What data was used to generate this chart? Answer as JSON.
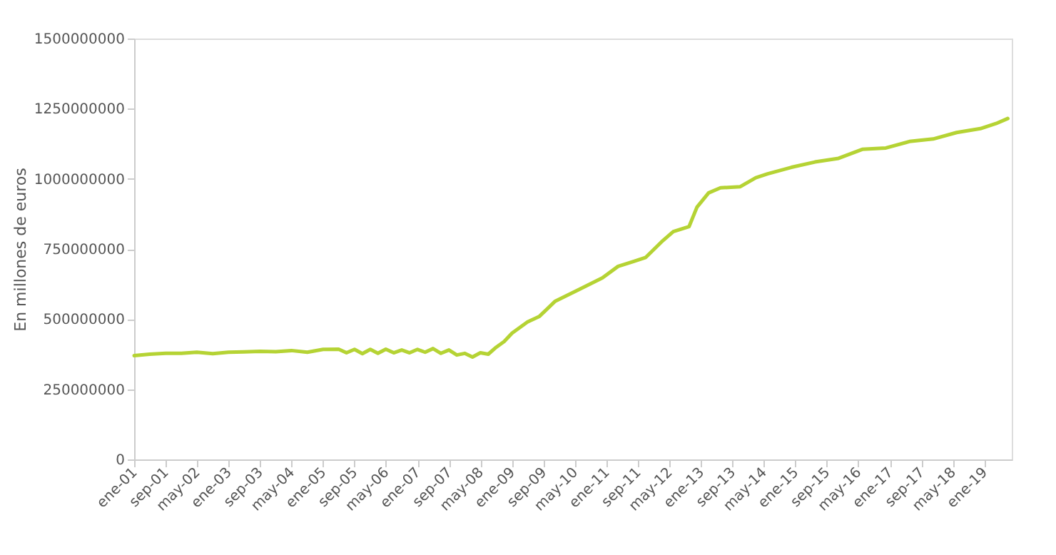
{
  "chart_data": {
    "type": "line",
    "ylabel": "En millones de euros",
    "x": [
      "2001-01",
      "2001-05",
      "2001-09",
      "2002-01",
      "2002-05",
      "2002-09",
      "2003-01",
      "2003-05",
      "2003-09",
      "2004-01",
      "2004-05",
      "2004-09",
      "2005-01",
      "2005-05",
      "2005-07",
      "2005-09",
      "2005-11",
      "2006-01",
      "2006-03",
      "2006-05",
      "2006-07",
      "2006-09",
      "2006-11",
      "2007-01",
      "2007-03",
      "2007-05",
      "2007-07",
      "2007-09",
      "2007-11",
      "2008-01",
      "2008-03",
      "2008-05",
      "2008-07",
      "2008-09",
      "2008-11",
      "2009-01",
      "2009-05",
      "2009-08",
      "2009-12",
      "2010-06",
      "2010-12",
      "2011-04",
      "2011-08",
      "2011-11",
      "2012-03",
      "2012-06",
      "2012-10",
      "2012-12",
      "2013-03",
      "2013-06",
      "2013-11",
      "2014-03",
      "2014-06",
      "2014-12",
      "2015-06",
      "2015-12",
      "2016-06",
      "2016-12",
      "2017-06",
      "2017-12",
      "2018-06",
      "2018-12",
      "2019-04",
      "2019-07"
    ],
    "series": [
      {
        "color": "#b5d334",
        "values": [
          370000000,
          375000000,
          378000000,
          378000000,
          382000000,
          377000000,
          382000000,
          383000000,
          385000000,
          384000000,
          388000000,
          382000000,
          392000000,
          393000000,
          380000000,
          392000000,
          377000000,
          392000000,
          378000000,
          393000000,
          380000000,
          390000000,
          380000000,
          392000000,
          382000000,
          395000000,
          378000000,
          390000000,
          372000000,
          378000000,
          365000000,
          380000000,
          375000000,
          400000000,
          420000000,
          450000000,
          490000000,
          510000000,
          564000000,
          605000000,
          647000000,
          688000000,
          706000000,
          720000000,
          775000000,
          812000000,
          830000000,
          899000000,
          950000000,
          968000000,
          972000000,
          1004000000,
          1018000000,
          1041000000,
          1060000000,
          1073000000,
          1105000000,
          1110000000,
          1133000000,
          1142000000,
          1165000000,
          1179000000,
          1197000000,
          1215000000
        ]
      }
    ],
    "xlim": [
      "2001-01",
      "2019-08"
    ],
    "xticks": [
      {
        "value": "2001-01",
        "label": "ene-01"
      },
      {
        "value": "2001-09",
        "label": "sep-01"
      },
      {
        "value": "2002-05",
        "label": "may-02"
      },
      {
        "value": "2003-01",
        "label": "ene-03"
      },
      {
        "value": "2003-09",
        "label": "sep-03"
      },
      {
        "value": "2004-05",
        "label": "may-04"
      },
      {
        "value": "2005-01",
        "label": "ene-05"
      },
      {
        "value": "2005-09",
        "label": "sep-05"
      },
      {
        "value": "2006-05",
        "label": "may-06"
      },
      {
        "value": "2007-01",
        "label": "ene-07"
      },
      {
        "value": "2007-09",
        "label": "sep-07"
      },
      {
        "value": "2008-05",
        "label": "may-08"
      },
      {
        "value": "2009-01",
        "label": "ene-09"
      },
      {
        "value": "2009-09",
        "label": "sep-09"
      },
      {
        "value": "2010-05",
        "label": "may-10"
      },
      {
        "value": "2011-01",
        "label": "ene-11"
      },
      {
        "value": "2011-09",
        "label": "sep-11"
      },
      {
        "value": "2012-05",
        "label": "may-12"
      },
      {
        "value": "2013-01",
        "label": "ene-13"
      },
      {
        "value": "2013-09",
        "label": "sep-13"
      },
      {
        "value": "2014-05",
        "label": "may-14"
      },
      {
        "value": "2015-01",
        "label": "ene-15"
      },
      {
        "value": "2015-09",
        "label": "sep-15"
      },
      {
        "value": "2016-05",
        "label": "may-16"
      },
      {
        "value": "2017-01",
        "label": "ene-17"
      },
      {
        "value": "2017-09",
        "label": "sep-17"
      },
      {
        "value": "2018-05",
        "label": "may-18"
      },
      {
        "value": "2019-01",
        "label": "ene-19"
      }
    ],
    "ylim": [
      0,
      1500000000
    ],
    "yticks": [
      0,
      250000000,
      500000000,
      750000000,
      1000000000,
      1250000000,
      1500000000
    ],
    "grid": false,
    "marker": "none",
    "line_style": "solid"
  }
}
